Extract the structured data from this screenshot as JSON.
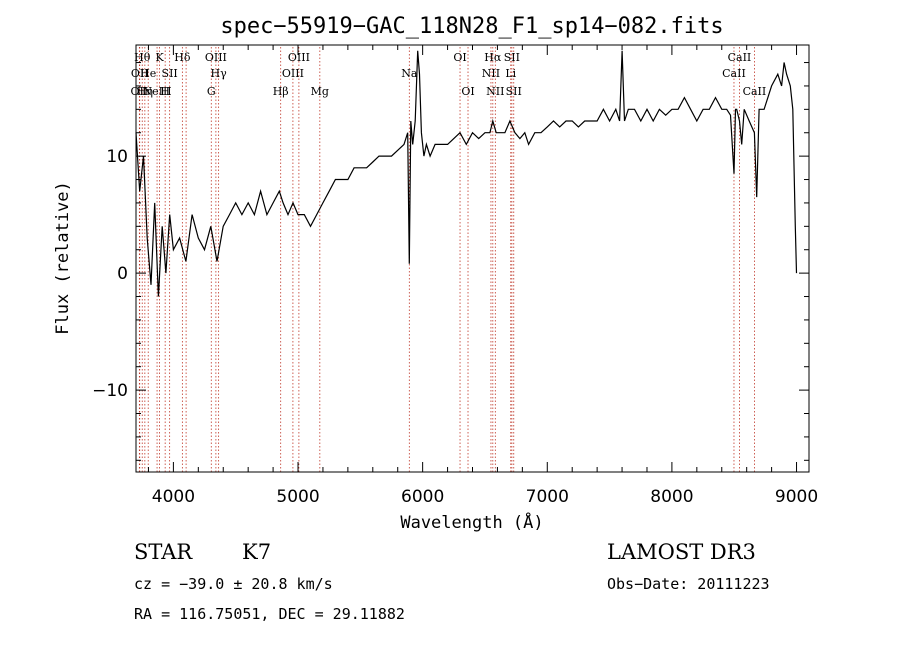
{
  "chart_data": {
    "type": "line",
    "title": "spec−55919−GAC_118N28_F1_sp14−082.fits",
    "xlabel": "Wavelength (Å)",
    "ylabel": "Flux (relative)",
    "xlim": [
      3700,
      9100
    ],
    "ylim": [
      -17,
      19.5
    ],
    "xticks": [
      4000,
      5000,
      6000,
      7000,
      8000,
      9000
    ],
    "xtick_labels": [
      "4000",
      "5000",
      "6000",
      "7000",
      "8000",
      "9000"
    ],
    "yticks": [
      10,
      0,
      -10
    ],
    "ytick_labels": [
      "10",
      "0",
      "−10"
    ],
    "series": [
      {
        "name": "flux",
        "color": "#000000",
        "x": [
          3700,
          3730,
          3760,
          3790,
          3820,
          3850,
          3880,
          3910,
          3940,
          3970,
          4000,
          4050,
          4100,
          4150,
          4200,
          4250,
          4300,
          4350,
          4400,
          4450,
          4500,
          4550,
          4600,
          4650,
          4700,
          4750,
          4800,
          4850,
          4880,
          4920,
          4960,
          5000,
          5050,
          5100,
          5150,
          5200,
          5250,
          5300,
          5350,
          5400,
          5450,
          5500,
          5550,
          5600,
          5650,
          5700,
          5750,
          5800,
          5850,
          5880,
          5893,
          5905,
          5920,
          5940,
          5960,
          5975,
          5990,
          6010,
          6030,
          6060,
          6100,
          6150,
          6200,
          6250,
          6300,
          6350,
          6400,
          6450,
          6500,
          6540,
          6563,
          6590,
          6620,
          6660,
          6700,
          6740,
          6780,
          6820,
          6850,
          6900,
          6950,
          7000,
          7050,
          7100,
          7150,
          7200,
          7250,
          7300,
          7350,
          7400,
          7450,
          7500,
          7550,
          7580,
          7600,
          7620,
          7650,
          7700,
          7750,
          7800,
          7850,
          7900,
          7950,
          8000,
          8050,
          8100,
          8150,
          8200,
          8250,
          8300,
          8350,
          8400,
          8440,
          8470,
          8498,
          8510,
          8520,
          8542,
          8560,
          8580,
          8620,
          8662,
          8680,
          8700,
          8740,
          8800,
          8850,
          8880,
          8900,
          8920,
          8950,
          8970,
          8990,
          9000
        ],
        "y": [
          12,
          7,
          10,
          3,
          -1,
          6,
          -2,
          4,
          0,
          5,
          2,
          3,
          1,
          5,
          3,
          2,
          4,
          1,
          4,
          5,
          6,
          5,
          6,
          5,
          7,
          5,
          6,
          7,
          6,
          5,
          6,
          5,
          5,
          4,
          5,
          6,
          7,
          8,
          8,
          8,
          9,
          9,
          9,
          9.5,
          10,
          10,
          10,
          10.5,
          11,
          12,
          0.8,
          13,
          11,
          13,
          19,
          17,
          12,
          10,
          11,
          10,
          11,
          11,
          11,
          11.5,
          12,
          11,
          12,
          11.5,
          12,
          12,
          13,
          12,
          12,
          12,
          13,
          12,
          11.5,
          12,
          11,
          12,
          12,
          12.5,
          13,
          12.5,
          13,
          13,
          12.5,
          13,
          13,
          13,
          14,
          13,
          14,
          13,
          19,
          13,
          14,
          14,
          13,
          14,
          13,
          14,
          13.5,
          14,
          14,
          15,
          14,
          13,
          14,
          14,
          15,
          14,
          14,
          13.5,
          8.5,
          14,
          14,
          13,
          11,
          14,
          13,
          12,
          6.5,
          14,
          14,
          16,
          17,
          16,
          18,
          17,
          16,
          14,
          4,
          0
        ]
      }
    ],
    "lines": [
      {
        "wl": 3727,
        "label": "OII",
        "row": 3
      },
      {
        "wl": 3730,
        "label": "OII",
        "row": 2
      },
      {
        "wl": 3750,
        "label": "Hθ",
        "row": 1
      },
      {
        "wl": 3771,
        "label": "Hη",
        "row": 3
      },
      {
        "wl": 3798,
        "label": "He",
        "row": 2
      },
      {
        "wl": 3869,
        "label": "NeIII",
        "row": 3
      },
      {
        "wl": 3889,
        "label": "K",
        "row": 1
      },
      {
        "wl": 3934,
        "label": "H",
        "row": 3
      },
      {
        "wl": 3970,
        "label": "SII",
        "row": 2
      },
      {
        "wl": 4072,
        "label": "Hδ",
        "row": 1
      },
      {
        "wl": 4102,
        "label": "",
        "row": 0
      },
      {
        "wl": 4304,
        "label": "G",
        "row": 3
      },
      {
        "wl": 4341,
        "label": "OIII",
        "row": 1
      },
      {
        "wl": 4363,
        "label": "Hγ",
        "row": 2
      },
      {
        "wl": 4861,
        "label": "Hβ",
        "row": 3
      },
      {
        "wl": 4959,
        "label": "OIII",
        "row": 2
      },
      {
        "wl": 5007,
        "label": "OIII",
        "row": 1
      },
      {
        "wl": 5175,
        "label": "Mg",
        "row": 3
      },
      {
        "wl": 5893,
        "label": "Na",
        "row": 2
      },
      {
        "wl": 6300,
        "label": "OI",
        "row": 1
      },
      {
        "wl": 6364,
        "label": "OI",
        "row": 3
      },
      {
        "wl": 6548,
        "label": "NII",
        "row": 2
      },
      {
        "wl": 6563,
        "label": "Hα",
        "row": 1
      },
      {
        "wl": 6583,
        "label": "NII",
        "row": 3
      },
      {
        "wl": 6707,
        "label": "Li",
        "row": 2
      },
      {
        "wl": 6716,
        "label": "SII",
        "row": 1
      },
      {
        "wl": 6731,
        "label": "SII",
        "row": 3
      },
      {
        "wl": 8498,
        "label": "CaII",
        "row": 2
      },
      {
        "wl": 8542,
        "label": "CaII",
        "row": 1
      },
      {
        "wl": 8662,
        "label": "CaII",
        "row": 3
      }
    ]
  },
  "info": {
    "class": "STAR",
    "subclass": "K7",
    "survey": "LAMOST DR3",
    "cz": "cz = −39.0 ± 20.8 km/s",
    "obs_date": "Obs−Date: 20111223",
    "radec": "RA = 116.75051, DEC =  29.11882"
  }
}
